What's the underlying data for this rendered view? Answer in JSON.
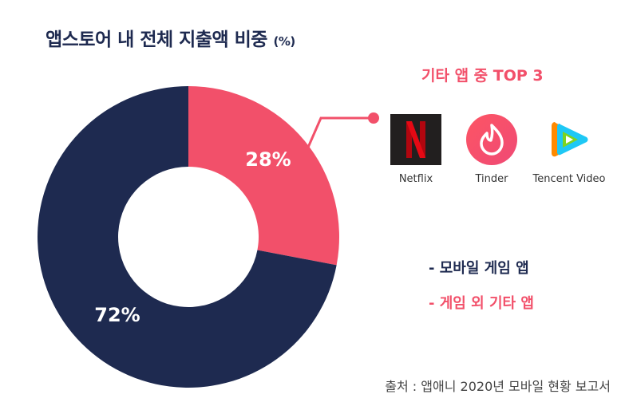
{
  "title": "앱스토어 내 전체 지출액 비중",
  "title_unit": "(%)",
  "chart_data": {
    "type": "pie",
    "categories": [
      "모바일 게임 앱",
      "게임 외 기타 앱"
    ],
    "values": [
      72,
      28
    ],
    "labels": [
      "72%",
      "28%"
    ],
    "colors": [
      "#1e2a50",
      "#f2506a"
    ]
  },
  "top3": {
    "title": "기타 앱 중 TOP 3",
    "apps": [
      {
        "name": "Netflix",
        "icon": "netflix-icon"
      },
      {
        "name": "Tinder",
        "icon": "tinder-icon"
      },
      {
        "name": "Tencent Video",
        "icon": "tencent-video-icon"
      }
    ]
  },
  "legend": {
    "mobile": "- 모바일 게임 앱",
    "other": "- 게임 외 기타 앱"
  },
  "source": "출처 : 앱애니 2020년 모바일 현황 보고서"
}
